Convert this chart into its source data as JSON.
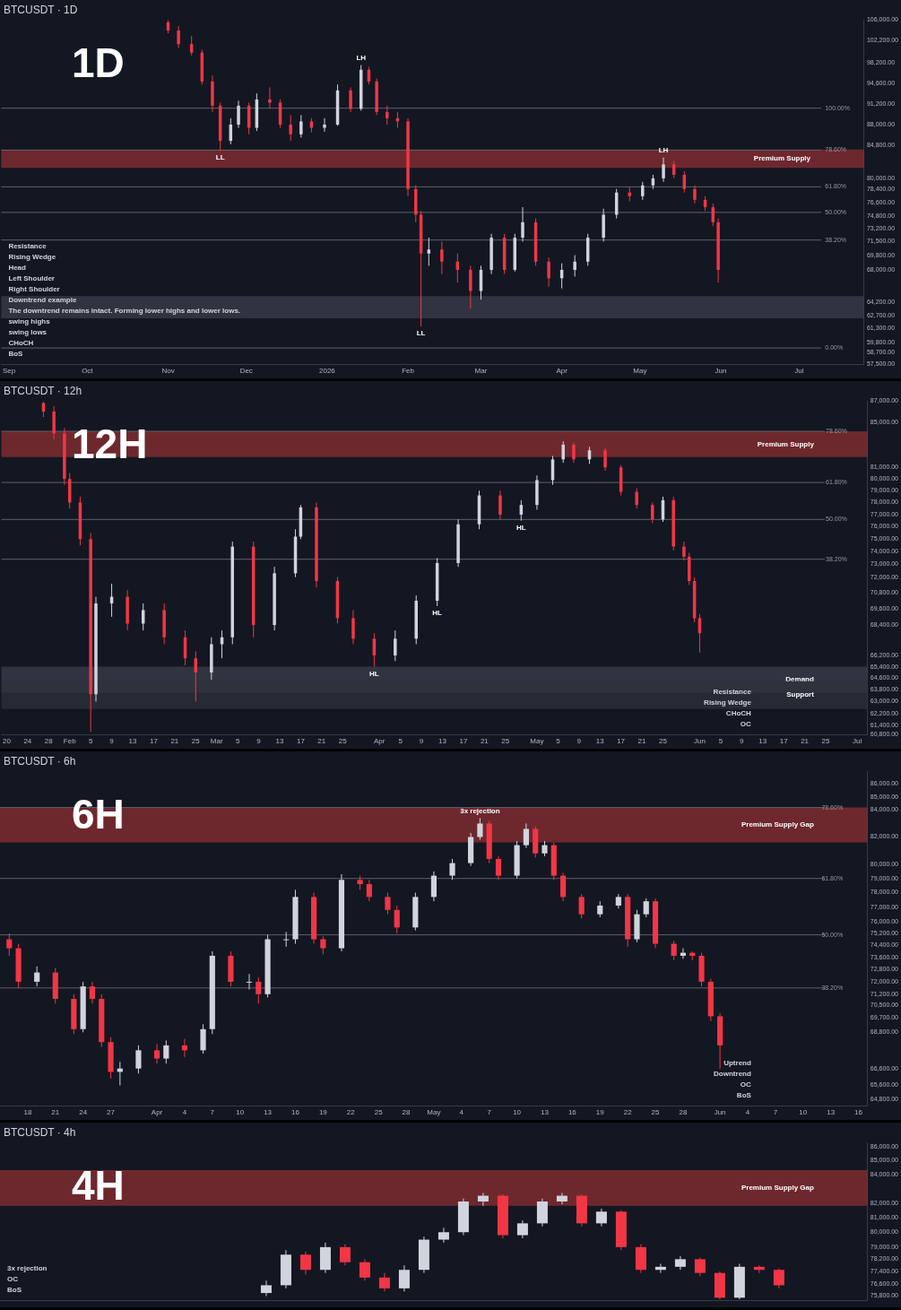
{
  "chart_data": [
    {
      "type": "candlestick",
      "title": "BTCUSDT · 1D",
      "subtitle": "1D",
      "log": "y",
      "grid": false,
      "legend": false,
      "xlim": [
        "2025-08-29",
        "2026-07-26"
      ],
      "ylim": [
        57500,
        106000
      ],
      "xticks": [
        {
          "value": "2025-09-01",
          "label": "Sep"
        },
        {
          "value": "2025-10-01",
          "label": "Oct"
        },
        {
          "value": "2025-11-01",
          "label": "Nov"
        },
        {
          "value": "2025-12-01",
          "label": "Dec"
        },
        {
          "value": "2026-01-01",
          "label": "2026"
        },
        {
          "value": "2026-02-01",
          "label": "Feb"
        },
        {
          "value": "2026-03-01",
          "label": "Mar"
        },
        {
          "value": "2026-04-01",
          "label": "Apr"
        },
        {
          "value": "2026-05-01",
          "label": "May"
        },
        {
          "value": "2026-06-01",
          "label": "Jun"
        },
        {
          "value": "2026-07-01",
          "label": "Jul"
        }
      ],
      "yticks": [
        {
          "value": 106000,
          "label": "106,000.00"
        },
        {
          "value": 102200,
          "label": "102,200.00"
        },
        {
          "value": 98200,
          "label": "98,200.00"
        },
        {
          "value": 94600,
          "label": "94,600.00"
        },
        {
          "value": 91200,
          "label": "91,200.00"
        },
        {
          "value": 88000,
          "label": "88,000.00"
        },
        {
          "value": 84800,
          "label": "84,800.00"
        },
        {
          "value": 80000,
          "label": "80,000.00"
        },
        {
          "value": 78400,
          "label": "78,400.00"
        },
        {
          "value": 76600,
          "label": "76,600.00"
        },
        {
          "value": 74800,
          "label": "74,800.00"
        },
        {
          "value": 73200,
          "label": "73,200.00"
        },
        {
          "value": 71500,
          "label": "71,500.00"
        },
        {
          "value": 69800,
          "label": "69,800.00"
        },
        {
          "value": 68000,
          "label": "68,000.00"
        },
        {
          "value": 64200,
          "label": "64,200.00"
        },
        {
          "value": 62700,
          "label": "62,700.00"
        },
        {
          "value": 61300,
          "label": "61,300.00"
        },
        {
          "value": 59800,
          "label": "59,800.00"
        },
        {
          "value": 58700,
          "label": "58,700.00"
        },
        {
          "value": 57500,
          "label": "57,500.00"
        }
      ],
      "x": [
        "2025-11-01",
        "2025-11-05",
        "2025-11-10",
        "2025-11-14",
        "2025-11-18",
        "2025-11-21",
        "2025-11-25",
        "2025-11-28",
        "2025-12-02",
        "2025-12-05",
        "2025-12-10",
        "2025-12-14",
        "2025-12-18",
        "2025-12-22",
        "2025-12-26",
        "2025-12-31",
        "2026-01-05",
        "2026-01-10",
        "2026-01-14",
        "2026-01-17",
        "2026-01-20",
        "2026-01-24",
        "2026-01-28",
        "2026-02-01",
        "2026-02-04",
        "2026-02-06",
        "2026-02-09",
        "2026-02-14",
        "2026-02-20",
        "2026-02-25",
        "2026-03-01",
        "2026-03-05",
        "2026-03-10",
        "2026-03-14",
        "2026-03-17",
        "2026-03-22",
        "2026-03-27",
        "2026-04-01",
        "2026-04-06",
        "2026-04-11",
        "2026-04-17",
        "2026-04-22",
        "2026-04-27",
        "2026-05-02",
        "2026-05-06",
        "2026-05-10",
        "2026-05-14",
        "2026-05-18",
        "2026-05-22",
        "2026-05-26",
        "2026-05-29",
        "2026-05-31"
      ],
      "ohlc": [
        [
          105500,
          105900,
          103500,
          104000
        ],
        [
          104000,
          104800,
          100800,
          101500
        ],
        [
          101500,
          103000,
          99500,
          100000
        ],
        [
          100000,
          100500,
          94500,
          95000
        ],
        [
          95000,
          96000,
          90000,
          91000
        ],
        [
          91000,
          91500,
          84000,
          85500
        ],
        [
          85500,
          89000,
          85000,
          88000
        ],
        [
          88000,
          91800,
          87500,
          91000
        ],
        [
          91000,
          91500,
          86500,
          87500
        ],
        [
          87500,
          93000,
          87000,
          92000
        ],
        [
          92000,
          94000,
          90500,
          91500
        ],
        [
          91500,
          92000,
          87500,
          88000
        ],
        [
          88000,
          89500,
          85500,
          86500
        ],
        [
          86500,
          89500,
          86000,
          88500
        ],
        [
          88500,
          89000,
          86800,
          87500
        ],
        [
          87500,
          89000,
          86900,
          88000
        ],
        [
          88000,
          94500,
          87800,
          93500
        ],
        [
          93500,
          94000,
          90000,
          90500
        ],
        [
          90500,
          97800,
          90200,
          97000
        ],
        [
          97000,
          97500,
          94500,
          95000
        ],
        [
          95000,
          95500,
          89500,
          90000
        ],
        [
          90000,
          91000,
          88000,
          89000
        ],
        [
          89000,
          90000,
          87500,
          88500
        ],
        [
          88500,
          89000,
          77500,
          78500
        ],
        [
          78500,
          79000,
          74000,
          75000
        ],
        [
          75000,
          75500,
          61500,
          70000
        ],
        [
          70000,
          72000,
          68500,
          70500
        ],
        [
          70500,
          71500,
          67500,
          69000
        ],
        [
          69000,
          70000,
          66500,
          68000
        ],
        [
          68000,
          68500,
          63500,
          65500
        ],
        [
          65500,
          68500,
          64500,
          68000
        ],
        [
          68000,
          72500,
          67500,
          72000
        ],
        [
          72000,
          72500,
          67500,
          68000
        ],
        [
          68000,
          72500,
          67800,
          72000
        ],
        [
          72000,
          76000,
          71500,
          74000
        ],
        [
          74000,
          74500,
          68500,
          69000
        ],
        [
          69000,
          69500,
          66000,
          67000
        ],
        [
          67000,
          68800,
          65800,
          68000
        ],
        [
          68000,
          69800,
          67200,
          69000
        ],
        [
          69000,
          72500,
          68500,
          72000
        ],
        [
          72000,
          75800,
          71500,
          75000
        ],
        [
          75000,
          78500,
          74500,
          78000
        ],
        [
          78000,
          78800,
          76800,
          77500
        ],
        [
          77500,
          79500,
          77000,
          79000
        ],
        [
          79000,
          80500,
          78500,
          80000
        ],
        [
          80000,
          83000,
          79500,
          82000
        ],
        [
          82000,
          82500,
          80000,
          80500
        ],
        [
          80500,
          81000,
          78000,
          78500
        ],
        [
          78500,
          79000,
          76500,
          77000
        ],
        [
          77000,
          77500,
          75500,
          76000
        ],
        [
          76000,
          76500,
          73500,
          74000
        ],
        [
          74000,
          74500,
          66500,
          68000
        ]
      ],
      "bands": [
        {
          "axis": "y",
          "from": 81500,
          "to": 84200,
          "label": "Premium Supply",
          "color": "#8c2f33"
        },
        {
          "axis": "y",
          "from": 62400,
          "to": 64900,
          "color": "#3a3f4b"
        }
      ],
      "ref_lines": [
        {
          "axis": "y",
          "value": 90600
        },
        {
          "axis": "y",
          "value": 84100
        },
        {
          "axis": "y",
          "value": 78800
        },
        {
          "axis": "y",
          "value": 75300
        },
        {
          "axis": "y",
          "value": 71700
        },
        {
          "axis": "y",
          "value": 59200
        }
      ],
      "annotations": [
        {
          "text": "100.00%",
          "x": "2026-07-11",
          "y": 90600
        },
        {
          "text": "78.60%",
          "x": "2026-07-11",
          "y": 84100
        },
        {
          "text": "61.80%",
          "x": "2026-07-11",
          "y": 78800
        },
        {
          "text": "50.00%",
          "x": "2026-07-11",
          "y": 75300
        },
        {
          "text": "38.20%",
          "x": "2026-07-11",
          "y": 71700
        },
        {
          "text": "0.00%",
          "x": "2026-07-11",
          "y": 59200
        },
        {
          "text": "LL",
          "x": "2025-11-21",
          "y": 84000
        },
        {
          "text": "LH",
          "x": "2026-01-14",
          "y": 97800
        },
        {
          "text": "LL",
          "x": "2026-02-06",
          "y": 61500
        },
        {
          "text": "LH",
          "x": "2026-05-10",
          "y": 83000
        },
        "Resistance",
        "Rising Wedge",
        "Head",
        "Left Shoulder",
        "Right Shoulder",
        "Downtrend example",
        "The downtrend remains intact. Forming lower highs and lower lows.",
        "swing highs",
        "swing lows",
        "CHoCH",
        "BoS"
      ]
    },
    {
      "type": "candlestick",
      "title": "BTCUSDT · 12h",
      "subtitle": "12H",
      "log": "y",
      "grid": false,
      "legend": false,
      "xlim": [
        "2026-01-19",
        "2026-07-03"
      ],
      "ylim": [
        60800,
        87000
      ],
      "xticks": [
        {
          "value": "2026-01-20",
          "label": "20"
        },
        {
          "value": "2026-01-24",
          "label": "24"
        },
        {
          "value": "2026-01-28",
          "label": "28"
        },
        {
          "value": "2026-02-01",
          "label": "Feb"
        },
        {
          "value": "2026-02-05",
          "label": "5"
        },
        {
          "value": "2026-02-09",
          "label": "9"
        },
        {
          "value": "2026-02-13",
          "label": "13"
        },
        {
          "value": "2026-02-17",
          "label": "17"
        },
        {
          "value": "2026-02-21",
          "label": "21"
        },
        {
          "value": "2026-02-25",
          "label": "25"
        },
        {
          "value": "2026-03-01",
          "label": "Mar"
        },
        {
          "value": "2026-03-05",
          "label": "5"
        },
        {
          "value": "2026-03-09",
          "label": "9"
        },
        {
          "value": "2026-03-13",
          "label": "13"
        },
        {
          "value": "2026-03-17",
          "label": "17"
        },
        {
          "value": "2026-03-21",
          "label": "21"
        },
        {
          "value": "2026-03-25",
          "label": "25"
        },
        {
          "value": "2026-04-01",
          "label": "Apr"
        },
        {
          "value": "2026-04-05",
          "label": "5"
        },
        {
          "value": "2026-04-09",
          "label": "9"
        },
        {
          "value": "2026-04-13",
          "label": "13"
        },
        {
          "value": "2026-04-17",
          "label": "17"
        },
        {
          "value": "2026-04-21",
          "label": "21"
        },
        {
          "value": "2026-04-25",
          "label": "25"
        },
        {
          "value": "2026-05-01",
          "label": "May"
        },
        {
          "value": "2026-05-05",
          "label": "5"
        },
        {
          "value": "2026-05-09",
          "label": "9"
        },
        {
          "value": "2026-05-13",
          "label": "13"
        },
        {
          "value": "2026-05-17",
          "label": "17"
        },
        {
          "value": "2026-05-21",
          "label": "21"
        },
        {
          "value": "2026-05-25",
          "label": "25"
        },
        {
          "value": "2026-06-01",
          "label": "Jun"
        },
        {
          "value": "2026-06-05",
          "label": "5"
        },
        {
          "value": "2026-06-09",
          "label": "9"
        },
        {
          "value": "2026-06-13",
          "label": "13"
        },
        {
          "value": "2026-06-17",
          "label": "17"
        },
        {
          "value": "2026-06-21",
          "label": "21"
        },
        {
          "value": "2026-06-25",
          "label": "25"
        },
        {
          "value": "2026-07-01",
          "label": "Jul"
        }
      ],
      "yticks": [
        {
          "value": 87000,
          "label": "87,000.00"
        },
        {
          "value": 85000,
          "label": "85,000.00"
        },
        {
          "value": 81000,
          "label": "81,000.00"
        },
        {
          "value": 80000,
          "label": "80,000.00"
        },
        {
          "value": 79000,
          "label": "79,000.00"
        },
        {
          "value": 78000,
          "label": "78,000.00"
        },
        {
          "value": 77000,
          "label": "77,000.00"
        },
        {
          "value": 76000,
          "label": "76,000.00"
        },
        {
          "value": 75000,
          "label": "75,000.00"
        },
        {
          "value": 74000,
          "label": "74,000.00"
        },
        {
          "value": 73000,
          "label": "73,000.00"
        },
        {
          "value": 72000,
          "label": "72,000.00"
        },
        {
          "value": 70800,
          "label": "70,800.00"
        },
        {
          "value": 69600,
          "label": "69,600.00"
        },
        {
          "value": 68400,
          "label": "68,400.00"
        },
        {
          "value": 66200,
          "label": "66,200.00"
        },
        {
          "value": 65400,
          "label": "65,400.00"
        },
        {
          "value": 64600,
          "label": "64,600.00"
        },
        {
          "value": 63800,
          "label": "63,800.00"
        },
        {
          "value": 63000,
          "label": "63,000.00"
        },
        {
          "value": 62200,
          "label": "62,200.00"
        },
        {
          "value": 61400,
          "label": "61,400.00"
        },
        {
          "value": 60800,
          "label": "60,800.00"
        }
      ],
      "x": [
        "2026-01-27",
        "2026-01-29",
        "2026-01-31",
        "2026-02-01",
        "2026-02-03",
        "2026-02-05",
        "2026-02-06",
        "2026-02-09",
        "2026-02-12",
        "2026-02-15",
        "2026-02-19",
        "2026-02-23",
        "2026-02-25",
        "2026-02-28",
        "2026-03-02",
        "2026-03-04",
        "2026-03-08",
        "2026-03-12",
        "2026-03-16",
        "2026-03-17",
        "2026-03-20",
        "2026-03-24",
        "2026-03-27",
        "2026-03-31",
        "2026-04-04",
        "2026-04-08",
        "2026-04-12",
        "2026-04-16",
        "2026-04-20",
        "2026-04-24",
        "2026-04-28",
        "2026-05-01",
        "2026-05-04",
        "2026-05-06",
        "2026-05-08",
        "2026-05-11",
        "2026-05-14",
        "2026-05-17",
        "2026-05-20",
        "2026-05-23",
        "2026-05-25",
        "2026-05-27",
        "2026-05-29",
        "2026-05-30",
        "2026-05-31",
        "2026-06-01"
      ],
      "ohlc": [
        [
          86800,
          86900,
          85500,
          86000
        ],
        [
          86000,
          86500,
          83500,
          84000
        ],
        [
          84000,
          84500,
          79500,
          80000
        ],
        [
          80000,
          80500,
          77500,
          78000
        ],
        [
          78000,
          78500,
          74500,
          75000
        ],
        [
          75000,
          75500,
          61000,
          63500
        ],
        [
          63500,
          70500,
          63000,
          70000
        ],
        [
          70000,
          71500,
          69000,
          70500
        ],
        [
          70500,
          71000,
          68000,
          68500
        ],
        [
          68500,
          70000,
          68000,
          69500
        ],
        [
          69500,
          70000,
          67000,
          67500
        ],
        [
          67500,
          68000,
          65500,
          66000
        ],
        [
          66000,
          66500,
          63000,
          65000
        ],
        [
          65000,
          67500,
          64500,
          67000
        ],
        [
          67000,
          68000,
          66000,
          67500
        ],
        [
          67500,
          74800,
          67000,
          74400
        ],
        [
          74400,
          74800,
          67500,
          68400
        ],
        [
          68400,
          72800,
          68000,
          72300
        ],
        [
          72300,
          75800,
          72000,
          75200
        ],
        [
          75200,
          77800,
          75000,
          77600
        ],
        [
          77600,
          78000,
          71200,
          71700
        ],
        [
          71700,
          72000,
          68500,
          68900
        ],
        [
          68900,
          69500,
          67000,
          67400
        ],
        [
          67400,
          67800,
          65400,
          66200
        ],
        [
          66200,
          68000,
          65800,
          67400
        ],
        [
          67400,
          70600,
          67000,
          70200
        ],
        [
          70200,
          73500,
          69800,
          73100
        ],
        [
          73100,
          76600,
          72800,
          76200
        ],
        [
          76200,
          79000,
          75800,
          78600
        ],
        [
          78600,
          79000,
          76600,
          77000
        ],
        [
          77000,
          78200,
          76500,
          77800
        ],
        [
          77800,
          80300,
          77400,
          79900
        ],
        [
          79900,
          82000,
          79500,
          81700
        ],
        [
          81700,
          83300,
          81400,
          83000
        ],
        [
          83000,
          83200,
          81400,
          81700
        ],
        [
          81700,
          82800,
          81300,
          82500
        ],
        [
          82500,
          82700,
          80700,
          81000
        ],
        [
          81000,
          81200,
          78600,
          78900
        ],
        [
          78900,
          79200,
          77500,
          77800
        ],
        [
          77800,
          78000,
          76300,
          76600
        ],
        [
          76600,
          78500,
          76400,
          78200
        ],
        [
          78200,
          78500,
          74100,
          74400
        ],
        [
          74400,
          74800,
          73300,
          73600
        ],
        [
          73600,
          73900,
          71400,
          71700
        ],
        [
          71700,
          72000,
          68600,
          68900
        ],
        [
          68900,
          69200,
          66400,
          67800
        ]
      ],
      "bands": [
        {
          "axis": "y",
          "from": 81900,
          "to": 84200,
          "label": "Premium Supply",
          "color": "#8c2f33"
        },
        {
          "axis": "y",
          "from": 63600,
          "to": 65400,
          "label": "Demand",
          "color": "#3a3f4b"
        },
        {
          "axis": "y",
          "from": 62500,
          "to": 64400,
          "label": "Support",
          "color": "#2e323c"
        }
      ],
      "ref_lines": [
        {
          "axis": "y",
          "value": 84200
        },
        {
          "axis": "y",
          "value": 79700
        },
        {
          "axis": "y",
          "value": 76600
        },
        {
          "axis": "y",
          "value": 73400
        }
      ],
      "annotations": [
        {
          "text": "78.60%",
          "x": "2026-06-25",
          "y": 84200
        },
        {
          "text": "61.80%",
          "x": "2026-06-25",
          "y": 79700
        },
        {
          "text": "50.00%",
          "x": "2026-06-25",
          "y": 76600
        },
        {
          "text": "38.20%",
          "x": "2026-06-25",
          "y": 73400
        },
        {
          "text": "HL",
          "x": "2026-03-31",
          "y": 65400
        },
        {
          "text": "HL",
          "x": "2026-04-12",
          "y": 69800
        },
        {
          "text": "HL",
          "x": "2026-04-28",
          "y": 76500
        },
        "Resistance",
        "Rising Wedge",
        "CHoCH",
        "OC"
      ]
    },
    {
      "type": "candlestick",
      "title": "BTCUSDT · 6h",
      "subtitle": "6H",
      "log": "y",
      "grid": false,
      "legend": false,
      "xlim": [
        "2026-03-15",
        "2026-06-17"
      ],
      "ylim": [
        64400,
        87000
      ],
      "xticks": [
        {
          "value": "2026-03-18",
          "label": "18"
        },
        {
          "value": "2026-03-21",
          "label": "21"
        },
        {
          "value": "2026-03-24",
          "label": "24"
        },
        {
          "value": "2026-03-27",
          "label": "27"
        },
        {
          "value": "2026-04-01",
          "label": "Apr"
        },
        {
          "value": "2026-04-04",
          "label": "4"
        },
        {
          "value": "2026-04-07",
          "label": "7"
        },
        {
          "value": "2026-04-10",
          "label": "10"
        },
        {
          "value": "2026-04-13",
          "label": "13"
        },
        {
          "value": "2026-04-16",
          "label": "16"
        },
        {
          "value": "2026-04-19",
          "label": "19"
        },
        {
          "value": "2026-04-22",
          "label": "22"
        },
        {
          "value": "2026-04-25",
          "label": "25"
        },
        {
          "value": "2026-04-28",
          "label": "28"
        },
        {
          "value": "2026-05-01",
          "label": "May"
        },
        {
          "value": "2026-05-04",
          "label": "4"
        },
        {
          "value": "2026-05-07",
          "label": "7"
        },
        {
          "value": "2026-05-10",
          "label": "10"
        },
        {
          "value": "2026-05-13",
          "label": "13"
        },
        {
          "value": "2026-05-16",
          "label": "16"
        },
        {
          "value": "2026-05-19",
          "label": "19"
        },
        {
          "value": "2026-05-22",
          "label": "22"
        },
        {
          "value": "2026-05-25",
          "label": "25"
        },
        {
          "value": "2026-05-28",
          "label": "28"
        },
        {
          "value": "2026-06-01",
          "label": "Jun"
        },
        {
          "value": "2026-06-04",
          "label": "4"
        },
        {
          "value": "2026-06-07",
          "label": "7"
        },
        {
          "value": "2026-06-10",
          "label": "10"
        },
        {
          "value": "2026-06-13",
          "label": "13"
        },
        {
          "value": "2026-06-16",
          "label": "16"
        }
      ],
      "yticks": [
        {
          "value": 86000,
          "label": "86,000.00"
        },
        {
          "value": 85000,
          "label": "85,000.00"
        },
        {
          "value": 84000,
          "label": "84,000.00"
        },
        {
          "value": 82000,
          "label": "82,000.00"
        },
        {
          "value": 80000,
          "label": "80,000.00"
        },
        {
          "value": 79000,
          "label": "79,000.00"
        },
        {
          "value": 78000,
          "label": "78,000.00"
        },
        {
          "value": 77000,
          "label": "77,000.00"
        },
        {
          "value": 76000,
          "label": "76,000.00"
        },
        {
          "value": 75200,
          "label": "75,200.00"
        },
        {
          "value": 74400,
          "label": "74,400.00"
        },
        {
          "value": 73600,
          "label": "73,600.00"
        },
        {
          "value": 72800,
          "label": "72,800.00"
        },
        {
          "value": 72000,
          "label": "72,000.00"
        },
        {
          "value": 71200,
          "label": "71,200.00"
        },
        {
          "value": 70500,
          "label": "70,500.00"
        },
        {
          "value": 69700,
          "label": "69,700.00"
        },
        {
          "value": 68800,
          "label": "68,800.00"
        },
        {
          "value": 66600,
          "label": "66,600.00"
        },
        {
          "value": 65600,
          "label": "65,600.00"
        },
        {
          "value": 64800,
          "label": "64,800.00"
        }
      ],
      "x": [
        "2026-03-16",
        "2026-03-17",
        "2026-03-19",
        "2026-03-21",
        "2026-03-23",
        "2026-03-24",
        "2026-03-25",
        "2026-03-26",
        "2026-03-27",
        "2026-03-28",
        "2026-03-30",
        "2026-04-01",
        "2026-04-02",
        "2026-04-04",
        "2026-04-06",
        "2026-04-07",
        "2026-04-09",
        "2026-04-11",
        "2026-04-12",
        "2026-04-13",
        "2026-04-15",
        "2026-04-16",
        "2026-04-18",
        "2026-04-19",
        "2026-04-21",
        "2026-04-23",
        "2026-04-24",
        "2026-04-26",
        "2026-04-27",
        "2026-04-29",
        "2026-05-01",
        "2026-05-03",
        "2026-05-05",
        "2026-05-06",
        "2026-05-07",
        "2026-05-08",
        "2026-05-10",
        "2026-05-11",
        "2026-05-12",
        "2026-05-13",
        "2026-05-14",
        "2026-05-15",
        "2026-05-17",
        "2026-05-19",
        "2026-05-21",
        "2026-05-22",
        "2026-05-23",
        "2026-05-24",
        "2026-05-25",
        "2026-05-27",
        "2026-05-28",
        "2026-05-29",
        "2026-05-30",
        "2026-05-31",
        "2026-06-01"
      ],
      "ohlc": [
        [
          74800,
          75200,
          73700,
          74200
        ],
        [
          74200,
          74500,
          71600,
          72000
        ],
        [
          72000,
          73000,
          71700,
          72600
        ],
        [
          72600,
          72900,
          70600,
          70900
        ],
        [
          70900,
          71200,
          68700,
          69000
        ],
        [
          69000,
          72000,
          68800,
          71700
        ],
        [
          71700,
          72000,
          70600,
          70900
        ],
        [
          70900,
          71200,
          67900,
          68200
        ],
        [
          68200,
          68500,
          66000,
          66400
        ],
        [
          66400,
          67000,
          65600,
          66600
        ],
        [
          66600,
          68000,
          66300,
          67700
        ],
        [
          67700,
          68100,
          66900,
          67200
        ],
        [
          67200,
          68300,
          66900,
          68000
        ],
        [
          68000,
          68400,
          67300,
          67700
        ],
        [
          67700,
          69300,
          67500,
          69000
        ],
        [
          69000,
          74000,
          68700,
          73700
        ],
        [
          73700,
          74000,
          71700,
          72000
        ],
        [
          72000,
          72500,
          71500,
          72000
        ],
        [
          72000,
          72300,
          70600,
          71200
        ],
        [
          71200,
          75100,
          71000,
          74800
        ],
        [
          74800,
          75300,
          74300,
          74800
        ],
        [
          74800,
          78200,
          74500,
          77700
        ],
        [
          77700,
          78000,
          74500,
          74800
        ],
        [
          74800,
          75000,
          73800,
          74200
        ],
        [
          74200,
          79300,
          74000,
          78900
        ],
        [
          78900,
          79200,
          78200,
          78600
        ],
        [
          78600,
          78900,
          77400,
          77700
        ],
        [
          77700,
          78000,
          76500,
          76800
        ],
        [
          76800,
          77100,
          75200,
          75600
        ],
        [
          75600,
          78000,
          75400,
          77700
        ],
        [
          77700,
          79500,
          77400,
          79200
        ],
        [
          79200,
          80400,
          78900,
          80100
        ],
        [
          80100,
          82300,
          79900,
          82000
        ],
        [
          82000,
          83400,
          81800,
          83000
        ],
        [
          83000,
          83200,
          80100,
          80400
        ],
        [
          80400,
          80600,
          78900,
          79200
        ],
        [
          79200,
          81700,
          79000,
          81400
        ],
        [
          81400,
          83000,
          81200,
          82600
        ],
        [
          82600,
          82800,
          80500,
          80800
        ],
        [
          80800,
          81700,
          80600,
          81400
        ],
        [
          81400,
          81600,
          78900,
          79200
        ],
        [
          79200,
          79400,
          77400,
          77700
        ],
        [
          77700,
          77900,
          76200,
          76500
        ],
        [
          76500,
          77400,
          76300,
          77100
        ],
        [
          77100,
          77900,
          76900,
          77700
        ],
        [
          77700,
          77900,
          74300,
          74800
        ],
        [
          74800,
          76800,
          74600,
          76500
        ],
        [
          76500,
          77600,
          76300,
          77400
        ],
        [
          77400,
          77600,
          74200,
          74500
        ],
        [
          74500,
          74700,
          73400,
          73700
        ],
        [
          73700,
          74200,
          73500,
          73900
        ],
        [
          73900,
          74000,
          73400,
          73700
        ],
        [
          73700,
          73900,
          71700,
          72000
        ],
        [
          72000,
          72200,
          69500,
          69800
        ],
        [
          69800,
          70000,
          66600,
          68000
        ]
      ],
      "bands": [
        {
          "axis": "y",
          "from": 81600,
          "to": 84200,
          "label": "Premium Supply Gap",
          "color": "#8c2f33"
        }
      ],
      "ref_lines": [
        {
          "axis": "y",
          "value": 84200
        },
        {
          "axis": "y",
          "value": 79000
        },
        {
          "axis": "y",
          "value": 75100
        },
        {
          "axis": "y",
          "value": 71600
        }
      ],
      "annotations": [
        {
          "text": "78.60%",
          "x": "2026-06-12",
          "y": 84200
        },
        {
          "text": "61.80%",
          "x": "2026-06-12",
          "y": 79000
        },
        {
          "text": "50.00%",
          "x": "2026-06-12",
          "y": 75100
        },
        {
          "text": "38.20%",
          "x": "2026-06-12",
          "y": 71600
        },
        {
          "text": "3x rejection",
          "x": "2026-05-06",
          "y": 83400
        },
        "Uptrend",
        "Downtrend",
        "OC",
        "BoS"
      ]
    },
    {
      "type": "candlestick",
      "title": "BTCUSDT · 4h",
      "subtitle": "4H",
      "log": "y",
      "grid": false,
      "legend": false,
      "tick_labels": "y",
      "ylim": [
        75500,
        86300
      ],
      "yticks": [
        {
          "value": 86000,
          "label": "86,000.00"
        },
        {
          "value": 85000,
          "label": "85,000.00"
        },
        {
          "value": 84000,
          "label": "84,000.00"
        },
        {
          "value": 82000,
          "label": "82,000.00"
        },
        {
          "value": 81000,
          "label": "81,000.00"
        },
        {
          "value": 80000,
          "label": "80,000.00"
        },
        {
          "value": 79000,
          "label": "79,000.00"
        },
        {
          "value": 78200,
          "label": "78,200.00"
        },
        {
          "value": 77400,
          "label": "77,400.00"
        },
        {
          "value": 76600,
          "label": "76,600.00"
        },
        {
          "value": 75800,
          "label": "75,800.00"
        }
      ],
      "categories": [
        null,
        null,
        null,
        null,
        null,
        null,
        null,
        null,
        null,
        null,
        null,
        null,
        null,
        null,
        null,
        null,
        null,
        null,
        null,
        null,
        null,
        null,
        null,
        null,
        null,
        null,
        null,
        null,
        null,
        null,
        null,
        null,
        null,
        null,
        null,
        null,
        null,
        null,
        null,
        null,
        null,
        null,
        null,
        null
      ],
      "ohlc": [
        null,
        null,
        null,
        null,
        null,
        null,
        null,
        null,
        null,
        null,
        null,
        null,
        null,
        [
          76000,
          76800,
          75800,
          76500
        ],
        [
          76500,
          78800,
          76300,
          78500
        ],
        [
          78500,
          78700,
          77200,
          77500
        ],
        [
          77500,
          79300,
          77300,
          79000
        ],
        [
          79000,
          79200,
          77800,
          78000
        ],
        [
          78000,
          78200,
          76800,
          77000
        ],
        [
          77000,
          77300,
          76100,
          76300
        ],
        [
          76300,
          77800,
          76100,
          77500
        ],
        [
          77500,
          79700,
          77300,
          79500
        ],
        [
          79500,
          80300,
          79300,
          80000
        ],
        [
          80000,
          82300,
          79800,
          82100
        ],
        [
          82100,
          82700,
          81800,
          82500
        ],
        [
          82500,
          82600,
          79600,
          79800
        ],
        [
          79800,
          80800,
          79600,
          80600
        ],
        [
          80600,
          82300,
          80400,
          82100
        ],
        [
          82100,
          82700,
          81900,
          82500
        ],
        [
          82500,
          82600,
          80400,
          80600
        ],
        [
          80600,
          81600,
          80400,
          81400
        ],
        [
          81400,
          81500,
          78800,
          79000
        ],
        [
          79000,
          79200,
          77300,
          77500
        ],
        [
          77500,
          77900,
          77300,
          77700
        ],
        [
          77700,
          78400,
          77500,
          78200
        ],
        [
          78200,
          78300,
          77100,
          77300
        ],
        [
          77300,
          77400,
          75600,
          75700
        ],
        [
          75700,
          77900,
          75600,
          77700
        ],
        [
          77700,
          77800,
          77300,
          77500
        ],
        [
          77500,
          77600,
          76300,
          76500
        ],
        null,
        null,
        null,
        null
      ],
      "bands": [
        {
          "axis": "y",
          "from": 81800,
          "to": 84300,
          "label": "Premium Supply Gap",
          "color": "#8c2f33"
        }
      ],
      "annotations": [
        "3x rejection",
        "OC",
        "BoS"
      ]
    }
  ]
}
